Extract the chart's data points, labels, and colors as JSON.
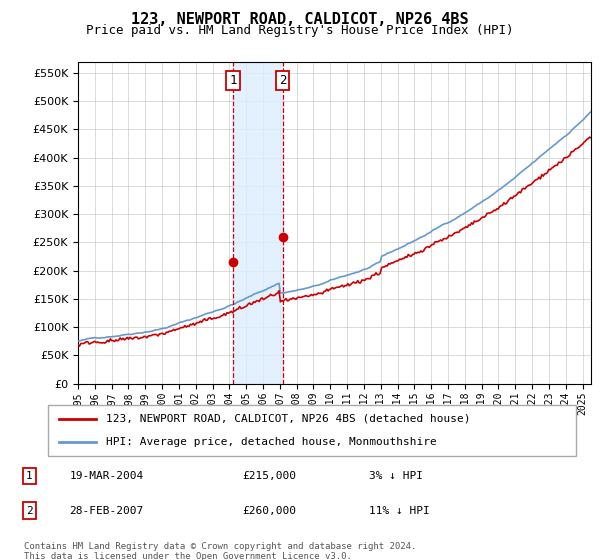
{
  "title": "123, NEWPORT ROAD, CALDICOT, NP26 4BS",
  "subtitle": "Price paid vs. HM Land Registry's House Price Index (HPI)",
  "yticks": [
    0,
    50000,
    100000,
    150000,
    200000,
    250000,
    300000,
    350000,
    400000,
    450000,
    500000,
    550000
  ],
  "xlim_start": 1995.0,
  "xlim_end": 2025.5,
  "ylim": [
    0,
    570000
  ],
  "legend_entries": [
    "123, NEWPORT ROAD, CALDICOT, NP26 4BS (detached house)",
    "HPI: Average price, detached house, Monmouthshire"
  ],
  "sale1_x": 2004.21,
  "sale1_y": 215000,
  "sale2_x": 2007.16,
  "sale2_y": 260000,
  "table_data": [
    [
      "1",
      "19-MAR-2004",
      "£215,000",
      "3% ↓ HPI"
    ],
    [
      "2",
      "28-FEB-2007",
      "£260,000",
      "11% ↓ HPI"
    ]
  ],
  "footer": "Contains HM Land Registry data © Crown copyright and database right 2024.\nThis data is licensed under the Open Government Licence v3.0.",
  "hpi_color": "#6699cc",
  "sale_color": "#cc0000",
  "shading_color": "#ddeeff",
  "vline_color": "#cc0000",
  "grid_color": "#cccccc"
}
